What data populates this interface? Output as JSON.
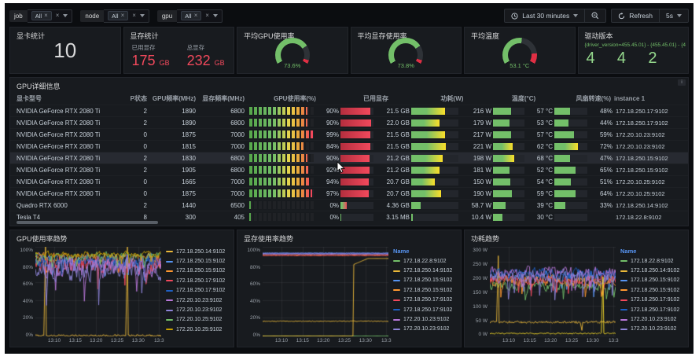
{
  "topbar": {
    "filters": [
      {
        "label": "job",
        "value": "All"
      },
      {
        "label": "node",
        "value": "All"
      },
      {
        "label": "gpu",
        "value": "All"
      }
    ],
    "time_label": "Last 30 minutes",
    "refresh_label": "Refresh",
    "refresh_interval": "5s"
  },
  "stats": {
    "gpu_count": {
      "title": "显卡统计",
      "value": "10"
    },
    "memory": {
      "title": "显存统计",
      "used_label": "已用显存",
      "used_value": "175",
      "used_unit": "GB",
      "total_label": "总显存",
      "total_value": "232",
      "total_unit": "GB",
      "value_color": "#f2495c"
    },
    "gpu_util_gauge": {
      "title": "平均GPU使用率",
      "value": "73.6%",
      "percent": 73.6,
      "color": "#73bf69",
      "red_from": 95
    },
    "mem_util_gauge": {
      "title": "平均显存使用率",
      "value": "73.8%",
      "percent": 73.8,
      "color": "#73bf69",
      "red_from": 95
    },
    "temp_gauge": {
      "title": "平均温度",
      "value": "53.1 °C",
      "percent": 53.1,
      "color": "#73bf69",
      "red_from": 85
    },
    "driver": {
      "title": "驱动版本",
      "label": "{driver_version=455.45.01} - {455.45.01} - {4",
      "values": [
        "4",
        "4",
        "2"
      ]
    }
  },
  "table": {
    "title": "GPU详细信息",
    "columns": [
      "显卡型号",
      "P状态",
      "GPU频率(MHz)",
      "显存频率(MHz)",
      "GPU使用率(%)",
      "已用显存",
      "功耗(W)",
      "温度(°C)",
      "风扇转速(%)",
      "instance 1"
    ],
    "rows": [
      {
        "model": "NVIDIA GeForce RTX 2080 Ti",
        "pstate": "2",
        "gpu_clock": "1890",
        "mem_clock": "6800",
        "util_pct": 90,
        "util": "90%",
        "mem": "21.5 GB",
        "mem_pct": 90,
        "mem_grad": "red",
        "power": "216 W",
        "power_pct": 72,
        "temp": "57 °C",
        "temp_pct": 57,
        "fan": "48%",
        "fan_pct": 48,
        "instance": "172.18.250.17:9102",
        "highlight": false
      },
      {
        "model": "NVIDIA GeForce RTX 2080 Ti",
        "pstate": "2",
        "gpu_clock": "1890",
        "mem_clock": "6800",
        "util_pct": 90,
        "util": "90%",
        "mem": "22.0 GB",
        "mem_pct": 92,
        "mem_grad": "red",
        "power": "179 W",
        "power_pct": 60,
        "temp": "53 °C",
        "temp_pct": 53,
        "fan": "44%",
        "fan_pct": 44,
        "instance": "172.18.250.17:9102",
        "highlight": false
      },
      {
        "model": "NVIDIA GeForce RTX 2080 Ti",
        "pstate": "0",
        "gpu_clock": "1875",
        "mem_clock": "7000",
        "util_pct": 99,
        "util": "99%",
        "mem": "21.5 GB",
        "mem_pct": 90,
        "mem_grad": "red",
        "power": "217 W",
        "power_pct": 72,
        "temp": "57 °C",
        "temp_pct": 57,
        "fan": "59%",
        "fan_pct": 59,
        "instance": "172.20.10.23:9102",
        "highlight": false
      },
      {
        "model": "NVIDIA GeForce RTX 2080 Ti",
        "pstate": "0",
        "gpu_clock": "1815",
        "mem_clock": "7000",
        "util_pct": 84,
        "util": "84%",
        "mem": "21.5 GB",
        "mem_pct": 90,
        "mem_grad": "red",
        "power": "221 W",
        "power_pct": 74,
        "temp": "62 °C",
        "temp_pct": 62,
        "fan": "72%",
        "fan_pct": 72,
        "instance": "172.20.10.23:9102",
        "highlight": false
      },
      {
        "model": "NVIDIA GeForce RTX 2080 Ti",
        "pstate": "2",
        "gpu_clock": "1830",
        "mem_clock": "6800",
        "util_pct": 90,
        "util": "90%",
        "mem": "21.2 GB",
        "mem_pct": 88,
        "mem_grad": "red",
        "power": "198 W",
        "power_pct": 66,
        "temp": "68 °C",
        "temp_pct": 68,
        "fan": "47%",
        "fan_pct": 47,
        "instance": "172.18.250.15:9102",
        "highlight": true
      },
      {
        "model": "NVIDIA GeForce RTX 2080 Ti",
        "pstate": "2",
        "gpu_clock": "1905",
        "mem_clock": "6800",
        "util_pct": 92,
        "util": "92%",
        "mem": "21.2 GB",
        "mem_pct": 88,
        "mem_grad": "red",
        "power": "181 W",
        "power_pct": 60,
        "temp": "52 °C",
        "temp_pct": 52,
        "fan": "65%",
        "fan_pct": 65,
        "instance": "172.18.250.15:9102",
        "highlight": false
      },
      {
        "model": "NVIDIA GeForce RTX 2080 Ti",
        "pstate": "0",
        "gpu_clock": "1665",
        "mem_clock": "7000",
        "util_pct": 94,
        "util": "94%",
        "mem": "20.7 GB",
        "mem_pct": 86,
        "mem_grad": "red",
        "power": "150 W",
        "power_pct": 50,
        "temp": "54 °C",
        "temp_pct": 54,
        "fan": "51%",
        "fan_pct": 51,
        "instance": "172.20.10.25:9102",
        "highlight": false
      },
      {
        "model": "NVIDIA GeForce RTX 2080 Ti",
        "pstate": "0",
        "gpu_clock": "1875",
        "mem_clock": "7000",
        "util_pct": 97,
        "util": "97%",
        "mem": "20.7 GB",
        "mem_pct": 86,
        "mem_grad": "red",
        "power": "190 W",
        "power_pct": 63,
        "temp": "59 °C",
        "temp_pct": 59,
        "fan": "64%",
        "fan_pct": 64,
        "instance": "172.20.10.25:9102",
        "highlight": false
      },
      {
        "model": "Quadro RTX 6000",
        "pstate": "2",
        "gpu_clock": "1440",
        "mem_clock": "6500",
        "util_pct": 0,
        "util": "0%",
        "mem": "4.36 GB",
        "mem_pct": 19,
        "mem_grad": "greenred",
        "power": "58.7 W",
        "power_pct": 20,
        "temp": "39 °C",
        "temp_pct": 39,
        "fan": "33%",
        "fan_pct": 33,
        "instance": "172.18.250.14:9102",
        "highlight": false
      },
      {
        "model": "Tesla T4",
        "pstate": "8",
        "gpu_clock": "300",
        "mem_clock": "405",
        "util_pct": 0,
        "util": "0%",
        "mem": "3.15 MB",
        "mem_pct": 1.5,
        "mem_grad": "tiny",
        "power": "10.4 W",
        "power_pct": 3.5,
        "temp": "30 °C",
        "temp_pct": 30,
        "fan": "",
        "fan_pct": 0,
        "instance": "172.18.22.8:9102",
        "highlight": false
      }
    ]
  },
  "chart_data": [
    {
      "type": "line",
      "title": "GPU使用率趋势",
      "ymax": 100,
      "y_ticks": [
        "100%",
        "80%",
        "60%",
        "40%",
        "20%",
        "0%"
      ],
      "x_ticks": [
        "13:10",
        "13:15",
        "13:20",
        "13:25",
        "13:30",
        "13:3"
      ],
      "legend_header": "",
      "series": [
        {
          "name": "172.18.250.14:9102",
          "color": "#EAB839",
          "kind": "flat_spike",
          "base": 1,
          "amp": 1,
          "spikes": [
            [
              0.08,
              100
            ],
            [
              0.73,
              100
            ]
          ],
          "legend": true
        },
        {
          "name": "172.18.250.15:9102",
          "color": "#5794F2",
          "kind": "noisy",
          "base": 85,
          "amp": 10,
          "legend": true
        },
        {
          "name": "172.18.250.15:9102",
          "color": "#FF9830",
          "kind": "noisy",
          "base": 88,
          "amp": 8,
          "legend": true
        },
        {
          "name": "172.18.250.17:9102",
          "color": "#F2495C",
          "kind": "noisy",
          "base": 80,
          "amp": 15,
          "legend": true
        },
        {
          "name": "172.18.250.17:9102",
          "color": "#1F60C4",
          "kind": "noisy",
          "base": 84,
          "amp": 12,
          "legend": true
        },
        {
          "name": "172.20.10.23:9102",
          "color": "#B877D9",
          "kind": "noisy",
          "base": 78,
          "amp": 17,
          "legend": true
        },
        {
          "name": "172.20.10.23:9102",
          "color": "#8E84D9",
          "kind": "noisy",
          "base": 76,
          "amp": 19,
          "legend": true
        },
        {
          "name": "172.20.10.25:9102",
          "color": "#73BF69",
          "kind": "noisy",
          "base": 90,
          "amp": 6,
          "legend": true
        },
        {
          "name": "172.20.10.25:9102",
          "color": "#CCA300",
          "kind": "noisy",
          "base": 92,
          "amp": 5,
          "legend": true
        }
      ]
    },
    {
      "type": "line",
      "title": "显存使用率趋势",
      "ymax": 100,
      "y_ticks": [
        "100%",
        "80%",
        "60%",
        "40%",
        "20%",
        "0%"
      ],
      "x_ticks": [
        "13:10",
        "13:15",
        "13:20",
        "13:25",
        "13:30",
        "13:3"
      ],
      "legend_header": "Name",
      "series": [
        {
          "name": "172.18.22.8:9102",
          "color": "#73BF69",
          "kind": "flat",
          "base": 0.5,
          "amp": 0,
          "legend": true
        },
        {
          "name": "172.18.250.14:9102",
          "color": "#EAB839",
          "kind": "ramp",
          "base": 0.5,
          "ramp_at": 0.72,
          "ramp_to": 87,
          "legend": true
        },
        {
          "name": "172.18.250.15:9102",
          "color": "#5794F2",
          "kind": "flat",
          "base": 93,
          "amp": 0.3,
          "legend": true
        },
        {
          "name": "172.18.250.15:9102",
          "color": "#FF9830",
          "kind": "flat",
          "base": 91,
          "amp": 0.3,
          "legend": true
        },
        {
          "name": "172.18.250.17:9102",
          "color": "#F2495C",
          "kind": "flat",
          "base": 90.2,
          "amp": 0.3,
          "legend": true
        },
        {
          "name": "172.18.250.17:9102",
          "color": "#1F60C4",
          "kind": "flat",
          "base": 92.4,
          "amp": 0.3,
          "legend": true
        },
        {
          "name": "172.20.10.23:9102",
          "color": "#B877D9",
          "kind": "flat",
          "base": 91.8,
          "amp": 0.3,
          "legend": true
        },
        {
          "name": "172.20.10.23:9102",
          "color": "#8E84D9",
          "kind": "flat",
          "base": 92.8,
          "amp": 0.3,
          "legend": true
        },
        {
          "name": "",
          "color": "#EAB839",
          "kind": "flat",
          "base": 17,
          "amp": 0.4,
          "legend": false
        }
      ]
    },
    {
      "type": "line",
      "title": "功耗趋势",
      "ymax": 300,
      "y_ticks": [
        "300 W",
        "250 W",
        "200 W",
        "150 W",
        "100 W",
        "50 W",
        "0 W"
      ],
      "x_ticks": [
        "13:10",
        "13:15",
        "13:20",
        "13:25",
        "13:30",
        "13:3"
      ],
      "legend_header": "Name",
      "series": [
        {
          "name": "172.18.22.8:9102",
          "color": "#73BF69",
          "kind": "noisy",
          "base": 168,
          "amp": 22,
          "legend": true
        },
        {
          "name": "172.18.250.14:9102",
          "color": "#EAB839",
          "kind": "flat_spike",
          "base": 48,
          "amp": 4,
          "spikes": [
            [
              0.07,
              270
            ],
            [
              0.73,
              20
            ]
          ],
          "legend": true
        },
        {
          "name": "172.18.250.15:9102",
          "color": "#5794F2",
          "kind": "noisy",
          "base": 200,
          "amp": 30,
          "legend": true
        },
        {
          "name": "172.18.250.15:9102",
          "color": "#FF9830",
          "kind": "noisy",
          "base": 185,
          "amp": 26,
          "legend": true
        },
        {
          "name": "172.18.250.17:9102",
          "color": "#F2495C",
          "kind": "noisy",
          "base": 190,
          "amp": 26,
          "legend": true
        },
        {
          "name": "172.18.250.17:9102",
          "color": "#1F60C4",
          "kind": "noisy",
          "base": 210,
          "amp": 30,
          "legend": true
        },
        {
          "name": "172.20.10.23:9102",
          "color": "#B877D9",
          "kind": "noisy",
          "base": 215,
          "amp": 30,
          "legend": true
        },
        {
          "name": "172.20.10.23:9102",
          "color": "#8E84D9",
          "kind": "noisy",
          "base": 198,
          "amp": 34,
          "legend": true
        },
        {
          "name": "",
          "color": "#FADE2A",
          "kind": "flat_spike",
          "base": 10,
          "amp": 2,
          "spikes": [
            [
              0.9,
              200
            ]
          ],
          "legend": false
        }
      ]
    }
  ]
}
